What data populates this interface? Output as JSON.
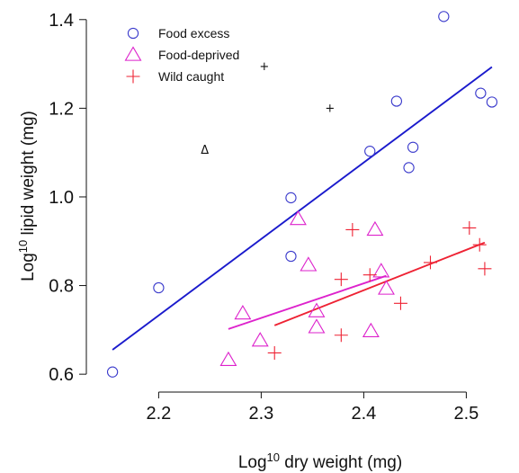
{
  "chart_data": {
    "type": "scatter",
    "title": "",
    "xlabel": {
      "prefix": "Log",
      "superscript": "10",
      "text": " dry weight (mg)"
    },
    "ylabel": {
      "prefix": "Log",
      "superscript": "10",
      "text": " lipid weight (mg)"
    },
    "xlim": [
      2.14,
      2.54
    ],
    "ylim": [
      0.58,
      1.43
    ],
    "xticks": [
      2.2,
      2.3,
      2.4,
      2.5
    ],
    "yticks": [
      0.6,
      0.8,
      1.0,
      1.2,
      1.4
    ],
    "xtick_labels": [
      "2.2",
      "2.3",
      "2.4",
      "2.5"
    ],
    "ytick_labels": [
      "0.6",
      "0.8",
      "1.0",
      "1.2",
      "1.4"
    ],
    "grid": false,
    "legend": {
      "position": "top-left"
    },
    "series": [
      {
        "name": "Food excess",
        "marker": "circle",
        "color": "#3b3bcc",
        "points": [
          {
            "x": 2.155,
            "y": 0.605
          },
          {
            "x": 2.2,
            "y": 0.795
          },
          {
            "x": 2.329,
            "y": 0.998
          },
          {
            "x": 2.329,
            "y": 0.866
          },
          {
            "x": 2.406,
            "y": 1.103
          },
          {
            "x": 2.432,
            "y": 1.216
          },
          {
            "x": 2.444,
            "y": 1.066
          },
          {
            "x": 2.448,
            "y": 1.112
          },
          {
            "x": 2.478,
            "y": 1.407
          },
          {
            "x": 2.514,
            "y": 1.234
          },
          {
            "x": 2.525,
            "y": 1.214
          }
        ],
        "fit": {
          "color": "#1a1acc",
          "x": [
            2.155,
            2.525
          ],
          "y": [
            0.655,
            1.293
          ]
        }
      },
      {
        "name": "Food-deprived",
        "marker": "triangle",
        "color": "#dd22cc",
        "points": [
          {
            "x": 2.268,
            "y": 0.632
          },
          {
            "x": 2.282,
            "y": 0.737
          },
          {
            "x": 2.299,
            "y": 0.676
          },
          {
            "x": 2.336,
            "y": 0.95
          },
          {
            "x": 2.346,
            "y": 0.846
          },
          {
            "x": 2.354,
            "y": 0.742
          },
          {
            "x": 2.354,
            "y": 0.706
          },
          {
            "x": 2.407,
            "y": 0.697
          },
          {
            "x": 2.411,
            "y": 0.926
          },
          {
            "x": 2.417,
            "y": 0.832
          },
          {
            "x": 2.422,
            "y": 0.793
          }
        ],
        "fit": {
          "color": "#dd22cc",
          "x": [
            2.268,
            2.422
          ],
          "y": [
            0.702,
            0.822
          ]
        }
      },
      {
        "name": "Wild caught",
        "marker": "plus",
        "color": "#ee2233",
        "points": [
          {
            "x": 2.313,
            "y": 0.648
          },
          {
            "x": 2.378,
            "y": 0.688
          },
          {
            "x": 2.378,
            "y": 0.814
          },
          {
            "x": 2.389,
            "y": 0.926
          },
          {
            "x": 2.406,
            "y": 0.824
          },
          {
            "x": 2.436,
            "y": 0.76
          },
          {
            "x": 2.465,
            "y": 0.852
          },
          {
            "x": 2.503,
            "y": 0.93
          },
          {
            "x": 2.513,
            "y": 0.892
          },
          {
            "x": 2.518,
            "y": 0.838
          }
        ],
        "fit": {
          "color": "#ee2233",
          "x": [
            2.313,
            2.518
          ],
          "y": [
            0.71,
            0.897
          ]
        }
      }
    ],
    "annotations": [
      {
        "symbol": "Δ",
        "x": 2.245,
        "y": 1.107
      },
      {
        "symbol": "+",
        "x": 2.303,
        "y": 1.296
      },
      {
        "symbol": "+",
        "x": 2.367,
        "y": 1.202
      }
    ]
  }
}
